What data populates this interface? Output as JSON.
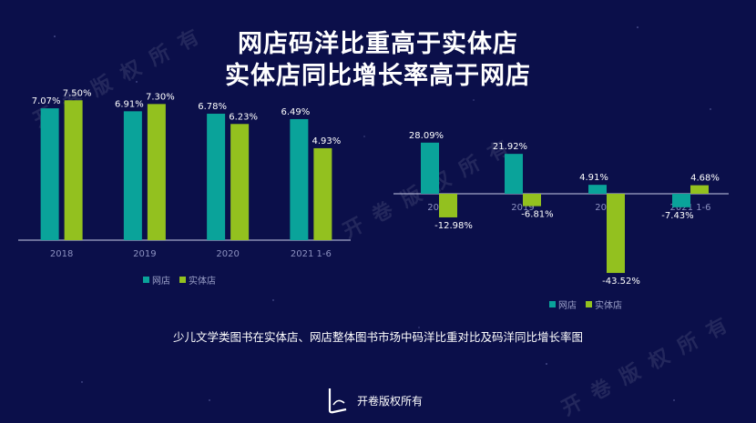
{
  "header": {
    "title_line1": "网店码洋比重高于实体店",
    "title_line2": "实体店同比增长率高于网店"
  },
  "caption": "少儿文学类图书在实体店、网店整体图书市场中码洋比重对比及码洋同比增长率图",
  "footer": {
    "brand": "开卷版权所有",
    "logo_icon": "kaijuan-logo-icon"
  },
  "watermark": "开卷版权所有",
  "colors": {
    "online": "#0aa39a",
    "physical": "#93c11f",
    "background": "#0b0f4a"
  },
  "chart_data": [
    {
      "type": "bar",
      "title": "",
      "categories": [
        "2018",
        "2019",
        "2020",
        "2021 1-6"
      ],
      "series": [
        {
          "name": "网店",
          "values": [
            7.07,
            6.91,
            6.78,
            6.49
          ],
          "labels": [
            "7.07%",
            "6.91%",
            "6.78%",
            "6.49%"
          ]
        },
        {
          "name": "实体店",
          "values": [
            7.5,
            7.3,
            6.23,
            4.93
          ],
          "labels": [
            "7.50%",
            "7.30%",
            "6.23%",
            "4.93%"
          ]
        }
      ],
      "ylim": [
        0,
        8
      ],
      "legend": [
        "网店",
        "实体店"
      ],
      "legend_position": "bottom"
    },
    {
      "type": "bar",
      "title": "",
      "categories": [
        "2018",
        "2019",
        "2020",
        "2021 1-6"
      ],
      "series": [
        {
          "name": "网店",
          "values": [
            28.09,
            21.92,
            4.91,
            -7.43
          ],
          "labels": [
            "28.09%",
            "21.92%",
            "4.91%",
            "-7.43%"
          ]
        },
        {
          "name": "实体店",
          "values": [
            -12.98,
            -6.81,
            -43.52,
            4.68
          ],
          "labels": [
            "-12.98%",
            "-6.81%",
            "-43.52%",
            "4.68%"
          ]
        }
      ],
      "ylim": [
        -44,
        30
      ],
      "legend": [
        "网店",
        "实体店"
      ],
      "legend_position": "bottom"
    }
  ]
}
